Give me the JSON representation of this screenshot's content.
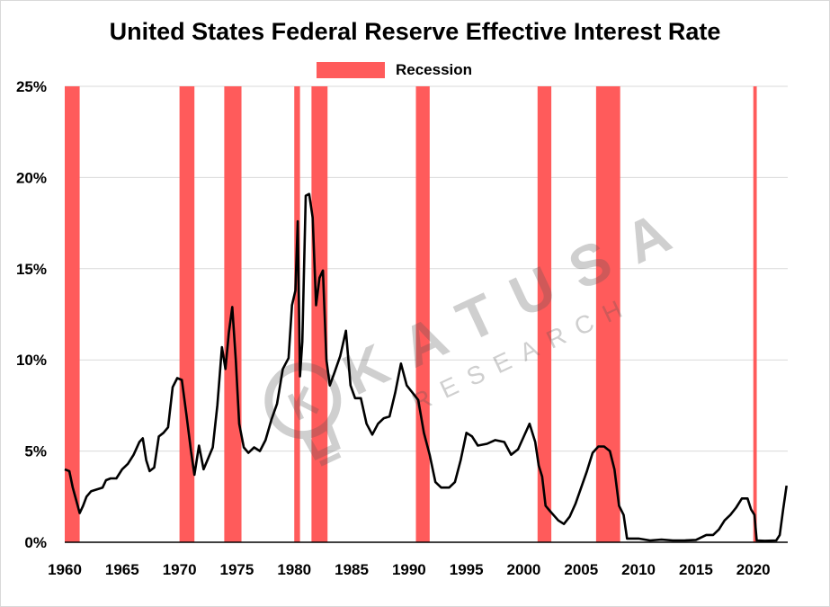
{
  "chart_data": {
    "type": "line",
    "title": "United States Federal Reserve Effective Interest Rate",
    "xlabel": "",
    "ylabel": "",
    "xlim": [
      1960,
      2023
    ],
    "ylim": [
      0,
      25
    ],
    "grid": "horizontal",
    "legend_position": "top-center",
    "x_ticks": [
      "1960",
      "1965",
      "1970",
      "1975",
      "1980",
      "1985",
      "1990",
      "1995",
      "2000",
      "2005",
      "2010",
      "2015",
      "2020"
    ],
    "y_ticks": [
      "0%",
      "5%",
      "10%",
      "15%",
      "20%",
      "25%"
    ],
    "legend": [
      {
        "name": "Recession",
        "color": "#ff5b5b"
      }
    ],
    "recessions": [
      [
        1960.0,
        1961.3
      ],
      [
        1970.0,
        1971.3
      ],
      [
        1973.9,
        1975.4
      ],
      [
        1980.0,
        1980.5
      ],
      [
        1981.5,
        1982.9
      ],
      [
        1990.6,
        1991.8
      ],
      [
        2001.2,
        2002.4
      ],
      [
        2006.3,
        2008.4
      ],
      [
        2020.0,
        2020.3
      ]
    ],
    "series": [
      {
        "line_color": "#000000",
        "x": [
          1960.0,
          1960.4,
          1960.7,
          1961.0,
          1961.3,
          1961.6,
          1961.9,
          1962.3,
          1962.8,
          1963.3,
          1963.6,
          1964.0,
          1964.5,
          1965.0,
          1965.5,
          1966.0,
          1966.5,
          1966.8,
          1967.1,
          1967.4,
          1967.8,
          1968.2,
          1968.6,
          1969.0,
          1969.4,
          1969.8,
          1970.2,
          1970.6,
          1971.0,
          1971.3,
          1971.7,
          1972.1,
          1972.5,
          1972.9,
          1973.3,
          1973.7,
          1974.0,
          1974.3,
          1974.6,
          1974.9,
          1975.2,
          1975.6,
          1976.0,
          1976.5,
          1977.0,
          1977.5,
          1978.0,
          1978.5,
          1979.0,
          1979.5,
          1979.8,
          1980.1,
          1980.3,
          1980.5,
          1980.7,
          1981.0,
          1981.3,
          1981.6,
          1981.9,
          1982.2,
          1982.5,
          1982.8,
          1983.1,
          1983.5,
          1984.0,
          1984.5,
          1984.9,
          1985.3,
          1985.8,
          1986.3,
          1986.8,
          1987.3,
          1987.8,
          1988.3,
          1988.8,
          1989.3,
          1989.8,
          1990.3,
          1990.8,
          1991.3,
          1991.8,
          1992.3,
          1992.8,
          1993.5,
          1994.0,
          1994.5,
          1995.0,
          1995.5,
          1996.0,
          1996.8,
          1997.5,
          1998.3,
          1998.9,
          1999.5,
          2000.0,
          2000.5,
          2001.0,
          2001.3,
          2001.6,
          2001.9,
          2002.3,
          2003.0,
          2003.5,
          2004.0,
          2004.5,
          2005.0,
          2005.5,
          2006.0,
          2006.5,
          2007.0,
          2007.5,
          2007.9,
          2008.3,
          2008.7,
          2009.0,
          2010.0,
          2011.0,
          2012.0,
          2013.0,
          2014.0,
          2015.0,
          2015.9,
          2016.5,
          2017.0,
          2017.5,
          2018.0,
          2018.5,
          2019.0,
          2019.5,
          2019.8,
          2020.1,
          2020.3,
          2021.0,
          2022.0,
          2022.3,
          2022.6,
          2022.9
        ],
        "y": [
          4.0,
          3.9,
          3.0,
          2.3,
          1.6,
          2.0,
          2.5,
          2.8,
          2.9,
          3.0,
          3.4,
          3.5,
          3.5,
          4.0,
          4.3,
          4.8,
          5.5,
          5.7,
          4.5,
          3.9,
          4.1,
          5.8,
          6.0,
          6.3,
          8.5,
          9.0,
          8.9,
          7.0,
          5.0,
          3.7,
          5.3,
          4.0,
          4.6,
          5.2,
          7.5,
          10.7,
          9.5,
          11.5,
          12.9,
          10.0,
          6.5,
          5.2,
          4.9,
          5.2,
          5.0,
          5.6,
          6.7,
          7.6,
          9.5,
          10.1,
          13.0,
          13.8,
          17.6,
          9.1,
          11.0,
          19.0,
          19.1,
          17.8,
          13.0,
          14.5,
          14.9,
          10.0,
          8.6,
          9.3,
          10.2,
          11.6,
          8.6,
          7.9,
          7.9,
          6.5,
          5.9,
          6.5,
          6.8,
          6.9,
          8.2,
          9.8,
          8.6,
          8.2,
          7.8,
          6.0,
          4.8,
          3.3,
          3.0,
          3.0,
          3.3,
          4.5,
          6.0,
          5.8,
          5.3,
          5.4,
          5.6,
          5.5,
          4.8,
          5.1,
          5.8,
          6.5,
          5.5,
          4.2,
          3.6,
          2.0,
          1.7,
          1.2,
          1.0,
          1.4,
          2.1,
          3.0,
          3.9,
          4.9,
          5.25,
          5.25,
          5.0,
          4.0,
          2.0,
          1.5,
          0.2,
          0.2,
          0.1,
          0.15,
          0.1,
          0.1,
          0.13,
          0.4,
          0.4,
          0.7,
          1.2,
          1.5,
          1.9,
          2.4,
          2.4,
          1.8,
          1.5,
          0.1,
          0.08,
          0.1,
          0.4,
          1.8,
          3.1
        ]
      }
    ]
  },
  "watermark": {
    "brand": "KATUSA",
    "sub": "RESEARCH",
    "icon": "lightbulb-icon"
  }
}
